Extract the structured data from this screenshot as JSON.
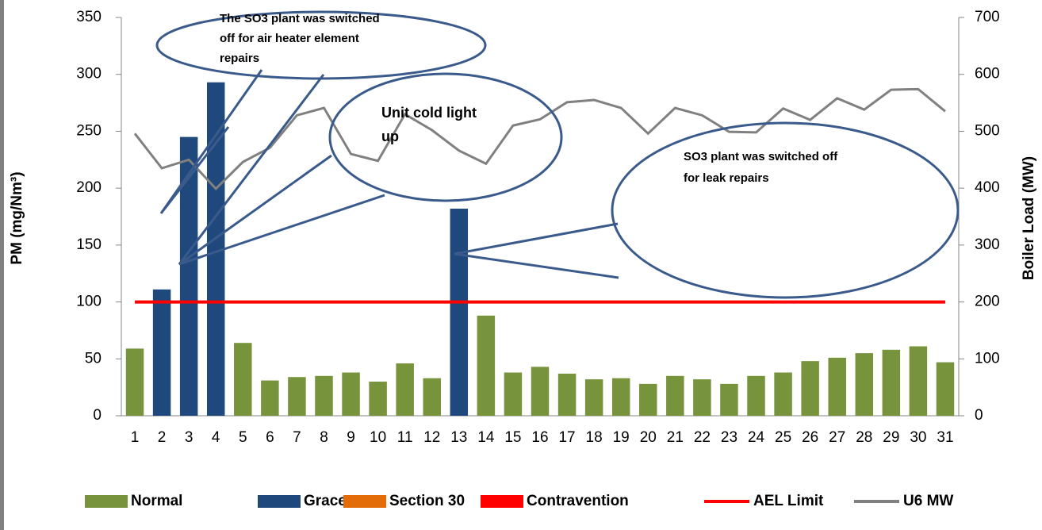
{
  "chart_data": {
    "type": "bar",
    "categories": [
      "1",
      "2",
      "3",
      "4",
      "5",
      "6",
      "7",
      "8",
      "9",
      "10",
      "11",
      "12",
      "13",
      "14",
      "15",
      "16",
      "17",
      "18",
      "19",
      "20",
      "21",
      "22",
      "23",
      "24",
      "25",
      "26",
      "27",
      "28",
      "29",
      "30",
      "31"
    ],
    "series": [
      {
        "name": "Normal",
        "color": "#77933c",
        "values": [
          59,
          null,
          null,
          null,
          64,
          31,
          34,
          35,
          38,
          30,
          46,
          33,
          null,
          88,
          38,
          43,
          37,
          32,
          33,
          28,
          35,
          32,
          28,
          35,
          38,
          48,
          51,
          55,
          58,
          61,
          47
        ]
      },
      {
        "name": "Grace",
        "color": "#1f497d",
        "values": [
          null,
          111,
          245,
          293,
          null,
          null,
          null,
          null,
          null,
          null,
          null,
          null,
          182,
          null,
          null,
          null,
          null,
          null,
          null,
          null,
          null,
          null,
          null,
          null,
          null,
          null,
          null,
          null,
          null,
          null,
          null
        ]
      },
      {
        "name": "Section 30",
        "color": "#e36c09",
        "values": [
          null,
          null,
          null,
          null,
          null,
          null,
          null,
          null,
          null,
          null,
          null,
          null,
          null,
          null,
          null,
          null,
          null,
          null,
          null,
          null,
          null,
          null,
          null,
          null,
          null,
          null,
          null,
          null,
          null,
          null,
          null
        ]
      },
      {
        "name": "Contravention",
        "color": "#ff0000",
        "values": [
          null,
          null,
          null,
          null,
          null,
          null,
          null,
          null,
          null,
          null,
          null,
          null,
          null,
          null,
          null,
          null,
          null,
          null,
          null,
          null,
          null,
          null,
          null,
          null,
          null,
          null,
          null,
          null,
          null,
          null,
          null
        ]
      },
      {
        "name": "AEL Limit",
        "type": "line",
        "color": "#ff0000",
        "values": [
          100,
          100,
          100,
          100,
          100,
          100,
          100,
          100,
          100,
          100,
          100,
          100,
          100,
          100,
          100,
          100,
          100,
          100,
          100,
          100,
          100,
          100,
          100,
          100,
          100,
          100,
          100,
          100,
          100,
          100,
          100
        ]
      },
      {
        "name": "U6 MW",
        "type": "line",
        "axis": "y2",
        "color": "#808080",
        "values": [
          496,
          435,
          450,
          399,
          446,
          471,
          528,
          541,
          460,
          448,
          530,
          502,
          466,
          443,
          510,
          521,
          551,
          555,
          541,
          496,
          541,
          528,
          499,
          498,
          540,
          520,
          558,
          538,
          573,
          574,
          535
        ]
      }
    ],
    "ylabel": "PM (mg/Nm³)",
    "y2label": "Boiler Load (MW)",
    "ylim": [
      0,
      350
    ],
    "yticks": [
      0,
      50,
      100,
      150,
      200,
      250,
      300,
      350
    ],
    "y2lim": [
      0,
      700
    ],
    "y2ticks": [
      0,
      100,
      200,
      300,
      400,
      500,
      600,
      700
    ],
    "annotations": [
      {
        "text": [
          "The SO3 plant was switched",
          "off for air heater element",
          "repairs"
        ]
      },
      {
        "text": [
          "Unit cold light",
          "up"
        ]
      },
      {
        "text": [
          "SO3 plant was switched off",
          "for leak repairs"
        ]
      }
    ]
  }
}
